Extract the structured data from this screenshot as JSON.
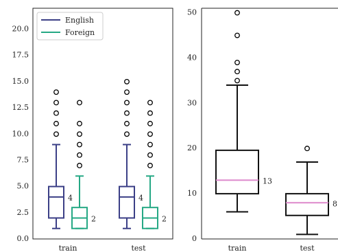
{
  "colors": {
    "english": "#3b3f86",
    "foreign": "#25a884",
    "right_box": "#111111",
    "right_median": "#dd88cc",
    "axes": "#222222"
  },
  "chart_data": [
    {
      "type": "box",
      "categories": [
        "train",
        "test"
      ],
      "ylim": [
        0,
        22
      ],
      "yticks": [
        "0.0",
        "2.5",
        "5.0",
        "7.5",
        "10.0",
        "12.5",
        "15.0",
        "17.5",
        "20.0"
      ],
      "legend": {
        "placement": "top-left",
        "entries": [
          "English",
          "Foreign"
        ]
      },
      "series": [
        {
          "name": "English",
          "boxes": [
            {
              "category": "train",
              "whislo": 1,
              "q1": 2,
              "med": 4,
              "q3": 5,
              "whishi": 9,
              "fliers": [
                10,
                11,
                12,
                13,
                14
              ],
              "median_label": "4"
            },
            {
              "category": "test",
              "whislo": 1,
              "q1": 2,
              "med": 4,
              "q3": 5,
              "whishi": 9,
              "fliers": [
                10,
                11,
                12,
                13,
                14,
                15
              ],
              "median_label": "4"
            }
          ]
        },
        {
          "name": "Foreign",
          "boxes": [
            {
              "category": "train",
              "whislo": 1,
              "q1": 1,
              "med": 2,
              "q3": 3,
              "whishi": 6,
              "fliers": [
                7,
                8,
                9,
                10,
                11,
                13
              ],
              "median_label": "2"
            },
            {
              "category": "test",
              "whislo": 1,
              "q1": 1,
              "med": 2,
              "q3": 3,
              "whishi": 6,
              "fliers": [
                7,
                8,
                9,
                10,
                11,
                12,
                13
              ],
              "median_label": "2"
            }
          ]
        }
      ]
    },
    {
      "type": "box",
      "categories": [
        "train",
        "test"
      ],
      "ylim": [
        0,
        51
      ],
      "yticks": [
        "0",
        "10",
        "20",
        "30",
        "40",
        "50"
      ],
      "boxes": [
        {
          "category": "train",
          "whislo": 6,
          "q1": 10,
          "med": 13,
          "q3": 19.6,
          "whishi": 34,
          "fliers": [
            35,
            37,
            39,
            45,
            50
          ],
          "median_label": "13"
        },
        {
          "category": "test",
          "whislo": 1,
          "q1": 5.2,
          "med": 8,
          "q3": 10,
          "whishi": 17,
          "fliers": [
            20
          ],
          "median_label": "8"
        }
      ]
    }
  ]
}
